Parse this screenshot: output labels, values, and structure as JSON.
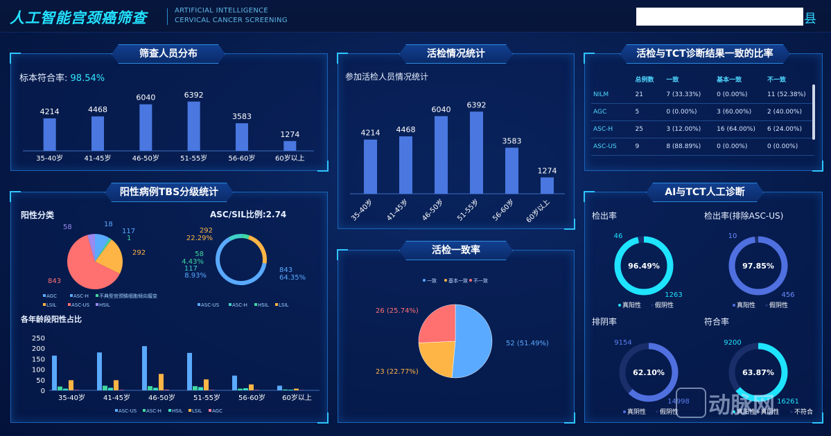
{
  "header": {
    "title": "人工智能宫颈癌筛查",
    "en_line1": "ARTIFICIAL INTELLIGENCE",
    "en_line2": "CERVICAL CANCER SCREENING",
    "county_suffix": "县"
  },
  "panels": {
    "screening": {
      "title": "筛查人员分布",
      "rate_label": "标本符合率:",
      "rate_value": "98.54%"
    },
    "biopsy": {
      "title": "活检情况统计",
      "subtitle": "参加活检人员情况统计"
    },
    "agreement": {
      "title": "活检与TCT诊断结果一致的比率"
    },
    "tbs": {
      "title": "阳性病例TBS分级统计",
      "pie_title": "阳性分类",
      "ratio_title": "ASC/SIL比例:2.74",
      "age_title": "各年龄段阳性占比"
    },
    "consistency": {
      "title": "活检一致率"
    },
    "ai": {
      "title": "AI与TCT人工诊断"
    }
  },
  "colors": {
    "accent": "#23e2ff",
    "bar": "#4a78e0",
    "green": "#3fd8a0",
    "orange": "#ffb545",
    "red": "#ff7070",
    "blue": "#5aaaff",
    "pink": "#ff7e9a",
    "purple": "#9a8af0"
  },
  "chart_data": [
    {
      "type": "bar",
      "id": "screening",
      "categories": [
        "35-40岁",
        "41-45岁",
        "46-50岁",
        "51-55岁",
        "56-60岁",
        "60岁以上"
      ],
      "values": [
        4214,
        4468,
        6040,
        6392,
        3583,
        1274
      ],
      "ylim": [
        0,
        7000
      ]
    },
    {
      "type": "bar",
      "id": "biopsy",
      "categories": [
        "35-40岁",
        "41-45岁",
        "46-50岁",
        "51-55岁",
        "56-60岁",
        "60岁以上"
      ],
      "values": [
        4214,
        4468,
        6040,
        6392,
        3583,
        1274
      ],
      "ylim": [
        0,
        7000
      ]
    },
    {
      "type": "pie",
      "id": "positive",
      "labels": [
        "AGC",
        "ASC-H",
        "不典型宫颈鳞细胞倾向瘤变",
        "LSIL",
        "ASC-US",
        "HSIL"
      ],
      "values": [
        1,
        117,
        18,
        292,
        843,
        58
      ],
      "legend": [
        "AGC",
        "ASC-H",
        "不典型宫颈鳞细胞倾向瘤变",
        "LSIL",
        "ASC-US",
        "HSIL"
      ]
    },
    {
      "type": "pie",
      "id": "ratio",
      "labels": [
        "ASC-US",
        "ASC-H",
        "HSIL",
        "LSIL"
      ],
      "values": [
        843,
        117,
        58,
        292
      ],
      "percent_labels": [
        "64.35%",
        "8.93%",
        "4.43%",
        "22.29%"
      ]
    },
    {
      "type": "bar",
      "id": "agebars",
      "categories": [
        "35-40岁",
        "41-45岁",
        "46-50岁",
        "51-55岁",
        "56-60岁",
        "60岁以上"
      ],
      "series": [
        {
          "name": "ASC-US",
          "values": [
            165,
            180,
            210,
            178,
            70,
            22
          ]
        },
        {
          "name": "ASC-H",
          "values": [
            18,
            22,
            20,
            20,
            8,
            4
          ]
        },
        {
          "name": "HSIL",
          "values": [
            8,
            12,
            12,
            15,
            10,
            3
          ]
        },
        {
          "name": "LSIL",
          "values": [
            48,
            48,
            78,
            52,
            28,
            8
          ]
        },
        {
          "name": "AGC",
          "values": [
            2,
            2,
            3,
            2,
            2,
            1
          ]
        }
      ],
      "ylim": [
        0,
        250
      ],
      "yticks": [
        0,
        50,
        100,
        150,
        200,
        250
      ]
    },
    {
      "type": "table",
      "id": "tct",
      "headers": [
        "",
        "总例数",
        "一致",
        "基本一致",
        "不一致"
      ],
      "rows": [
        [
          "NILM",
          "21",
          "7 (33.33%)",
          "0 (0.00%)",
          "11 (52.38%)"
        ],
        [
          "AGC",
          "5",
          "0 (0.00%)",
          "3 (60.00%)",
          "2 (40.00%)"
        ],
        [
          "ASC-H",
          "25",
          "3 (12.00%)",
          "16 (64.00%)",
          "6 (24.00%)"
        ],
        [
          "ASC-US",
          "9",
          "8 (88.89%)",
          "0 (0.00%)",
          "0 (0.00%)"
        ]
      ]
    },
    {
      "type": "pie",
      "id": "consistency",
      "labels": [
        "一致",
        "基本一致",
        "不一致"
      ],
      "values": [
        52,
        23,
        26
      ],
      "slice_labels": [
        "52 (51.49%)",
        "23 (22.77%)",
        "26 (25.74%)"
      ]
    },
    {
      "type": "pie",
      "id": "detect",
      "title": "检出率",
      "values": [
        1263,
        46
      ],
      "center": "96.49%",
      "legend": [
        "真阳性",
        "假阴性"
      ]
    },
    {
      "type": "pie",
      "id": "detect_ex",
      "title": "检出率(排除ASC-US)",
      "values": [
        456,
        10
      ],
      "center": "97.85%",
      "legend": [
        "真阳性",
        "假阴性"
      ]
    },
    {
      "type": "pie",
      "id": "neg",
      "title": "排阴率",
      "values": [
        14998,
        9154
      ],
      "center": "62.10%",
      "legend": [
        "真阴性",
        "假阴性"
      ]
    },
    {
      "type": "pie",
      "id": "match",
      "title": "符合率",
      "values": [
        16261,
        9200
      ],
      "center": "63.87%",
      "legend": [
        "真阳性+真阴性",
        "不符合"
      ]
    }
  ],
  "watermark": "动脉网"
}
